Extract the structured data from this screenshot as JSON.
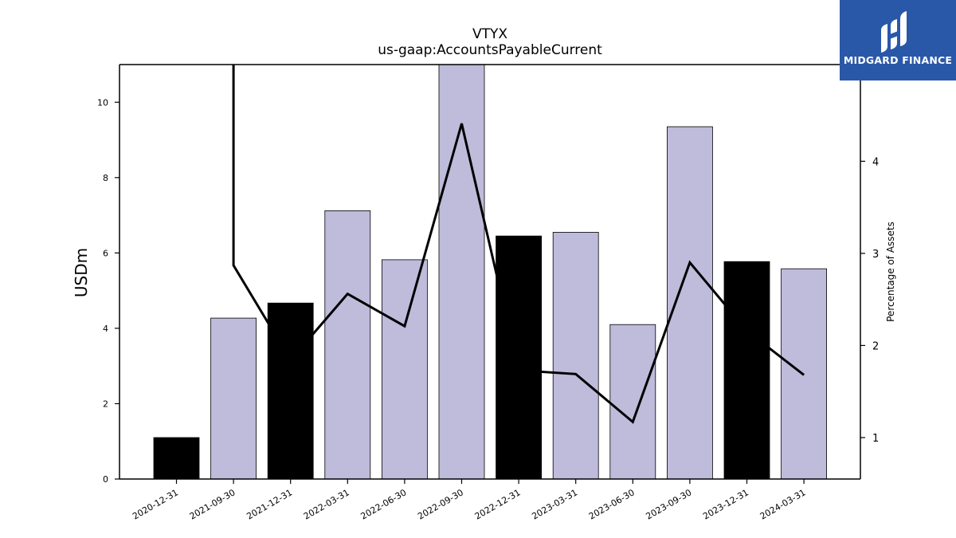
{
  "chart_data": {
    "type": "bar",
    "title": "VTYX",
    "subtitle": "us-gaap:AccountsPayableCurrent",
    "ylabel": "USDm",
    "y2label": "Percentage of Assets",
    "ylim": [
      0,
      11
    ],
    "y2lim": [
      0.55,
      5.05
    ],
    "yticks": [
      0,
      2,
      4,
      6,
      8,
      10
    ],
    "y2ticks": [
      1,
      2,
      3,
      4
    ],
    "categories": [
      "2020-12-31",
      "2021-09-30",
      "2021-12-31",
      "2022-03-31",
      "2022-06-30",
      "2022-09-30",
      "2022-12-31",
      "2023-03-31",
      "2023-06-30",
      "2023-09-30",
      "2023-12-31",
      "2024-03-31"
    ],
    "series": [
      {
        "values": [
          1.1,
          4.27,
          4.67,
          7.12,
          5.82,
          11.0,
          6.45,
          6.55,
          4.1,
          9.35,
          5.77,
          5.58
        ],
        "colors": [
          "#000000",
          "#bebbdb",
          "#000000",
          "#bebbdb",
          "#bebbdb",
          "#bebbdb",
          "#000000",
          "#bebbdb",
          "#bebbdb",
          "#bebbdb",
          "#000000",
          "#bebbdb"
        ]
      },
      {
        "type": "line",
        "axis": "right",
        "x": [
          "2021-09-30",
          "2021-09-30",
          "2021-12-31",
          "2022-03-31",
          "2022-06-30",
          "2022-09-30",
          "2022-12-31",
          "2023-03-31",
          "2023-06-30",
          "2023-09-30",
          "2023-12-31",
          "2024-03-31"
        ],
        "values": [
          5.05,
          2.87,
          1.84,
          2.56,
          2.21,
          4.41,
          1.73,
          1.69,
          1.17,
          2.9,
          2.16,
          1.68
        ],
        "color": "#000000"
      }
    ],
    "grid": false
  },
  "logo": {
    "text": "MIDGARD FINANCE",
    "colors": {
      "background": "#2a58a8",
      "foreground": "#ffffff"
    }
  }
}
